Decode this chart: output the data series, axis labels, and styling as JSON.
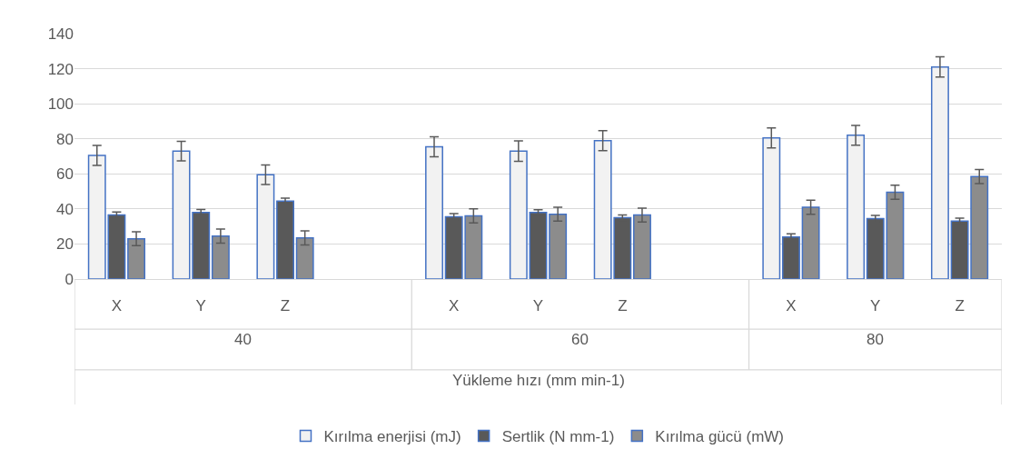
{
  "chart_data": {
    "type": "bar",
    "xlabel": "Yükleme hızı (mm min-1)",
    "categories": [
      "X",
      "Y",
      "Z",
      null,
      "X",
      "Y",
      "Z",
      null,
      "X",
      "Y",
      "Z"
    ],
    "annotations": [
      "40",
      "60",
      "80"
    ],
    "series": [
      {
        "name": "Kırılma enerjisi (mJ)",
        "color": "#f2f2f2",
        "values": [
          70.5,
          73,
          59.5,
          null,
          75.5,
          73,
          79,
          null,
          80.5,
          82,
          121
        ],
        "errors": [
          5.7,
          5.6,
          5.6,
          null,
          5.7,
          5.8,
          5.7,
          null,
          5.7,
          5.6,
          5.8
        ]
      },
      {
        "name": "Sertlik (N mm-1)",
        "color": "#595959",
        "values": [
          36.5,
          38,
          44.5,
          null,
          35.5,
          38,
          35,
          null,
          24,
          34.5,
          33
        ],
        "errors": [
          1.7,
          1.7,
          1.7,
          null,
          1.8,
          1.6,
          1.6,
          null,
          1.8,
          1.8,
          1.7
        ]
      },
      {
        "name": "Kırılma gücü (mW)",
        "color": "#8c8c8c",
        "values": [
          23,
          24.5,
          23.5,
          null,
          36,
          37,
          36.5,
          null,
          41,
          49.5,
          58.5
        ],
        "errors": [
          4,
          4,
          4,
          null,
          4,
          4,
          4,
          null,
          4,
          4,
          4
        ]
      }
    ],
    "ylim": [
      0,
      140
    ],
    "yticks": [
      0,
      20,
      40,
      60,
      80,
      100,
      120,
      140
    ],
    "grid": "y",
    "legend": "bottom"
  }
}
